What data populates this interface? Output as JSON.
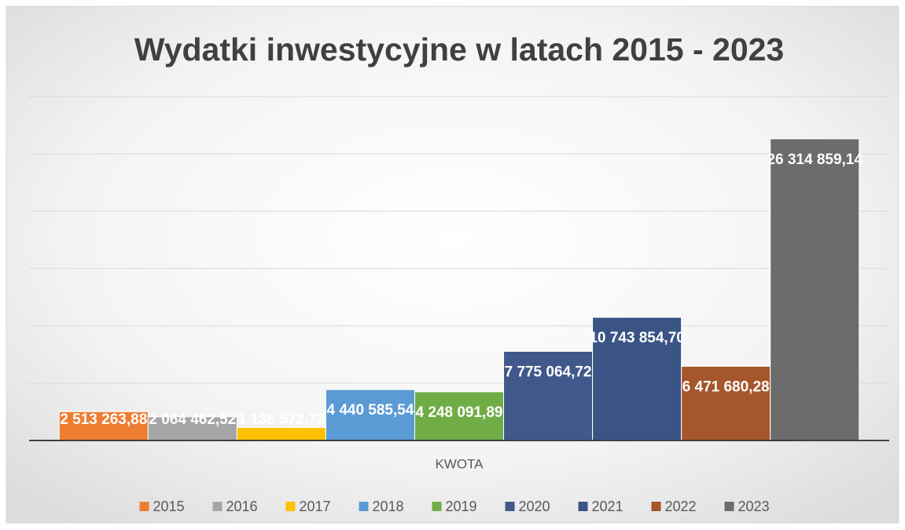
{
  "chart_data": {
    "type": "bar",
    "title": "Wydatki inwestycyjne w latach 2015 - 2023",
    "categories": [
      "KWOTA"
    ],
    "series": [
      {
        "name": "2015",
        "color": "#ed7d31",
        "values": [
          2513263.88
        ],
        "value_labels": [
          "2 513 263,88"
        ]
      },
      {
        "name": "2016",
        "color": "#a5a5a5",
        "values": [
          2064462.52
        ],
        "value_labels": [
          "2 064 462,52"
        ]
      },
      {
        "name": "2017",
        "color": "#ffc000",
        "values": [
          1136572.73
        ],
        "value_labels": [
          "1 136 572,73"
        ]
      },
      {
        "name": "2018",
        "color": "#5b9bd5",
        "values": [
          4440585.54
        ],
        "value_labels": [
          "4 440 585,54"
        ]
      },
      {
        "name": "2019",
        "color": "#70ad47",
        "values": [
          4248091.89
        ],
        "value_labels": [
          "4 248 091,89"
        ]
      },
      {
        "name": "2020",
        "color": "#41598a",
        "values": [
          7775064.72
        ],
        "value_labels": [
          "7 775 064,72"
        ]
      },
      {
        "name": "2021",
        "color": "#3b5486",
        "values": [
          10743854.7
        ],
        "value_labels": [
          "10 743 854,70"
        ]
      },
      {
        "name": "2022",
        "color": "#a5562a",
        "values": [
          6471680.28
        ],
        "value_labels": [
          "6 471 680,28"
        ]
      },
      {
        "name": "2023",
        "color": "#6c6c6c",
        "values": [
          26314859.14
        ],
        "value_labels": [
          "26 314 859,14"
        ]
      }
    ],
    "ylim": [
      0,
      30000000
    ],
    "yticks": [
      0,
      5000000,
      10000000,
      15000000,
      20000000,
      25000000,
      30000000
    ],
    "grid": true,
    "legend": "bottom"
  }
}
